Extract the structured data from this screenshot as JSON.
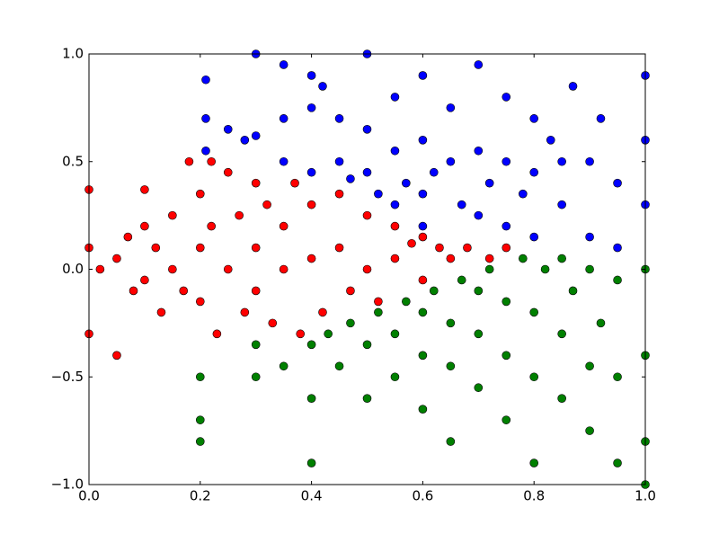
{
  "chart_data": {
    "type": "scatter",
    "xlim": [
      0,
      1
    ],
    "ylim": [
      -1,
      1
    ],
    "xticks": [
      {
        "value": 0,
        "label": "0.0"
      },
      0.2,
      0.4,
      0.6,
      0.8,
      {
        "value": 1,
        "label": "1.0"
      }
    ],
    "yticks": [
      {
        "value": -1,
        "label": "−1.0"
      },
      {
        "value": -0.5,
        "label": "−0.5"
      },
      {
        "value": 0,
        "label": "0.0"
      },
      0.5,
      {
        "value": 1,
        "label": "1.0"
      }
    ],
    "grid": false,
    "series": [
      {
        "color": "#0000ff",
        "x": [
          0.21,
          0.21,
          0.21,
          0.25,
          0.28,
          0.3,
          0.3,
          0.35,
          0.35,
          0.35,
          0.4,
          0.4,
          0.4,
          0.42,
          0.45,
          0.45,
          0.47,
          0.5,
          0.5,
          0.5,
          0.52,
          0.55,
          0.55,
          0.57,
          0.6,
          0.6,
          0.6,
          0.62,
          0.65,
          0.65,
          0.67,
          0.7,
          0.7,
          0.7,
          0.72,
          0.75,
          0.75,
          0.75,
          0.78,
          0.8,
          0.8,
          0.8,
          0.83,
          0.85,
          0.87,
          0.9,
          0.9,
          0.92,
          0.95,
          0.95,
          1.0,
          1.0,
          1.0,
          0.6,
          0.55,
          0.85
        ],
        "y": [
          0.88,
          0.7,
          0.55,
          0.65,
          0.6,
          1.0,
          0.62,
          0.95,
          0.7,
          0.5,
          0.9,
          0.75,
          0.45,
          0.85,
          0.7,
          0.5,
          0.42,
          1.0,
          0.65,
          0.45,
          0.35,
          0.8,
          0.55,
          0.4,
          0.9,
          0.6,
          0.35,
          0.45,
          0.75,
          0.5,
          0.3,
          0.95,
          0.55,
          0.25,
          0.4,
          0.8,
          0.5,
          0.2,
          0.35,
          0.7,
          0.45,
          0.15,
          0.6,
          0.3,
          0.85,
          0.5,
          0.15,
          0.7,
          0.4,
          0.1,
          0.9,
          0.6,
          0.3,
          0.2,
          0.3,
          0.5
        ]
      },
      {
        "color": "#008000",
        "x": [
          0.2,
          0.2,
          0.2,
          0.3,
          0.3,
          0.35,
          0.4,
          0.4,
          0.4,
          0.43,
          0.45,
          0.47,
          0.5,
          0.5,
          0.52,
          0.55,
          0.55,
          0.57,
          0.6,
          0.6,
          0.6,
          0.62,
          0.65,
          0.65,
          0.65,
          0.67,
          0.7,
          0.7,
          0.7,
          0.72,
          0.75,
          0.75,
          0.75,
          0.78,
          0.8,
          0.8,
          0.8,
          0.82,
          0.85,
          0.85,
          0.87,
          0.9,
          0.9,
          0.9,
          0.92,
          0.95,
          0.95,
          0.95,
          1.0,
          1.0,
          1.0,
          1.0,
          0.85
        ],
        "y": [
          -0.7,
          -0.8,
          -0.5,
          -0.5,
          -0.35,
          -0.45,
          -0.6,
          -0.9,
          -0.35,
          -0.3,
          -0.45,
          -0.25,
          -0.6,
          -0.35,
          -0.2,
          -0.5,
          -0.3,
          -0.15,
          -0.65,
          -0.4,
          -0.2,
          -0.1,
          -0.8,
          -0.45,
          -0.25,
          -0.05,
          -0.55,
          -0.3,
          -0.1,
          0.0,
          -0.7,
          -0.4,
          -0.15,
          0.05,
          -0.9,
          -0.5,
          -0.2,
          0.0,
          -0.6,
          -0.3,
          -0.1,
          -0.75,
          -0.45,
          0.0,
          -0.25,
          -0.9,
          -0.5,
          -0.05,
          -0.8,
          -0.4,
          0.0,
          -1.0,
          0.05
        ]
      },
      {
        "color": "#ff0000",
        "x": [
          0,
          0,
          0,
          0.02,
          0.05,
          0.05,
          0.07,
          0.08,
          0.1,
          0.1,
          0.1,
          0.12,
          0.13,
          0.15,
          0.15,
          0.17,
          0.18,
          0.2,
          0.2,
          0.2,
          0.22,
          0.22,
          0.23,
          0.25,
          0.25,
          0.27,
          0.28,
          0.3,
          0.3,
          0.3,
          0.32,
          0.33,
          0.35,
          0.35,
          0.37,
          0.38,
          0.4,
          0.4,
          0.42,
          0.45,
          0.45,
          0.47,
          0.5,
          0.5,
          0.52,
          0.55,
          0.55,
          0.58,
          0.6,
          0.6,
          0.63,
          0.65,
          0.68,
          0.72,
          0.75
        ],
        "y": [
          0.37,
          0.1,
          -0.3,
          0.0,
          0.05,
          -0.4,
          0.15,
          -0.1,
          0.37,
          0.2,
          -0.05,
          0.1,
          -0.2,
          0.25,
          0.0,
          -0.1,
          0.5,
          0.35,
          0.1,
          -0.15,
          0.5,
          0.2,
          -0.3,
          0.45,
          0.0,
          0.25,
          -0.2,
          0.4,
          0.1,
          -0.1,
          0.3,
          -0.25,
          0.2,
          0.0,
          0.4,
          -0.3,
          0.3,
          0.05,
          -0.2,
          0.35,
          0.1,
          -0.1,
          0.25,
          0.0,
          -0.15,
          0.2,
          0.05,
          0.12,
          0.15,
          -0.05,
          0.1,
          0.05,
          0.1,
          0.05,
          0.1
        ]
      }
    ]
  }
}
